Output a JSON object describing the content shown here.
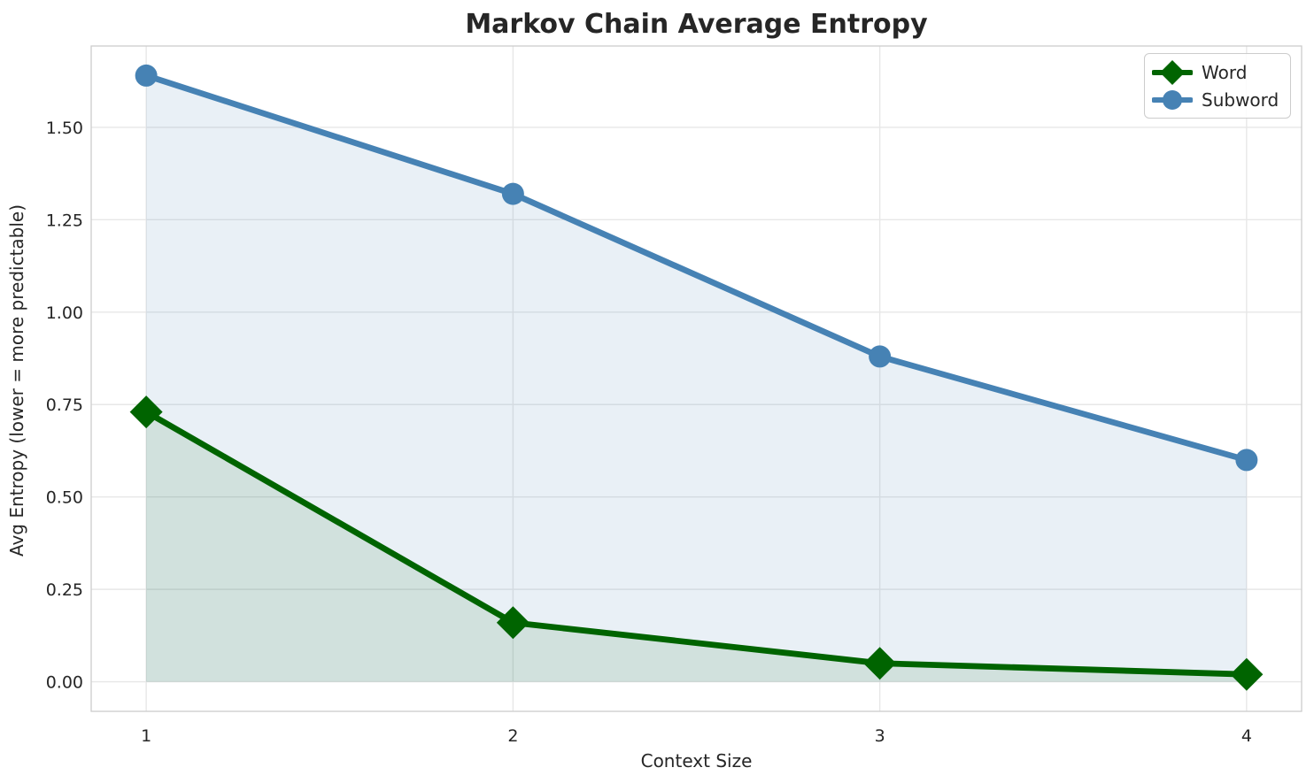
{
  "figure": {
    "title": "Markov Chain Average Entropy",
    "background_color": "#ffffff",
    "text_color": "#262626",
    "grid_color": "#e7e7e7",
    "spine_color": "#cdcdcd"
  },
  "legend": {
    "position": "upper right",
    "items": [
      {
        "label": "Word",
        "marker": "diamond",
        "color": "#006400"
      },
      {
        "label": "Subword",
        "marker": "circle",
        "color": "#4682b4"
      }
    ]
  },
  "chart_data": {
    "type": "line",
    "title": "Markov Chain Average Entropy",
    "xlabel": "Context Size",
    "ylabel": "Avg Entropy (lower = more predictable)",
    "x": [
      1,
      2,
      3,
      4
    ],
    "series": [
      {
        "name": "Word",
        "values": [
          0.73,
          0.16,
          0.05,
          0.02
        ],
        "color": "#006400",
        "marker": "diamond",
        "area_fill": true,
        "fill_opacity": 0.1
      },
      {
        "name": "Subword",
        "values": [
          1.64,
          1.32,
          0.88,
          0.6
        ],
        "color": "#4682b4",
        "marker": "circle",
        "area_fill": true,
        "fill_opacity": 0.12
      }
    ],
    "xticks": [
      1,
      2,
      3,
      4
    ],
    "xtick_labels": [
      "1",
      "2",
      "3",
      "4"
    ],
    "ytick_values": [
      0.0,
      0.25,
      0.5,
      0.75,
      1.0,
      1.25,
      1.5
    ],
    "ytick_labels": [
      "0.00",
      "0.25",
      "0.50",
      "0.75",
      "1.00",
      "1.25",
      "1.50"
    ],
    "xlim": [
      0.85,
      4.15
    ],
    "ylim": [
      -0.08,
      1.72
    ],
    "grid": true,
    "legend_position": "upper right"
  }
}
